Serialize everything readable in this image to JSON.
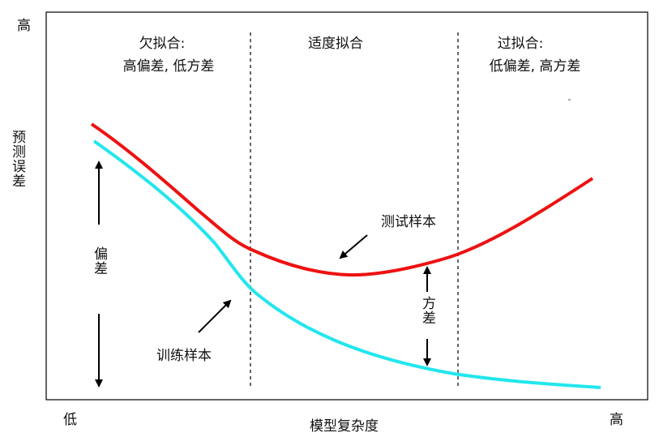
{
  "axes": {
    "y_high": "高",
    "y_label": "预测误差",
    "x_low": "低",
    "x_label": "模型复杂度",
    "x_high": "高"
  },
  "regions": {
    "underfit": {
      "line1": "欠拟合:",
      "line2": "高偏差, 低方差"
    },
    "goodfit": {
      "line1": "适度拟合"
    },
    "overfit": {
      "line1": "过拟合:",
      "line2": "低偏差, 高方差"
    }
  },
  "annotations": {
    "test_sample": "测试样本",
    "train_sample": "训练样本",
    "bias": "偏差",
    "variance": "方差"
  },
  "colors": {
    "test_curve": "#ee1111",
    "train_curve": "#22e6ee",
    "frame": "#000000",
    "divider": "#000000"
  }
}
